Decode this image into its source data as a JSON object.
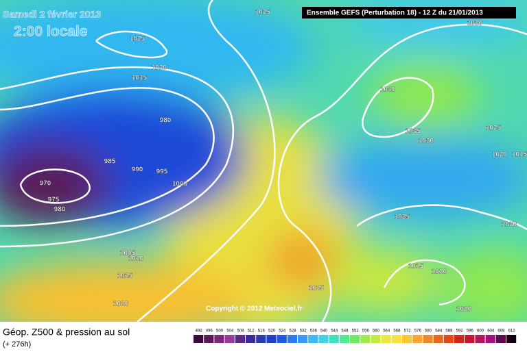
{
  "header": {
    "date": "Samedi 2 février 2013",
    "time": "2:00 locale",
    "model": "Ensemble GEFS (Perturbation 18)  -  12 Z du 21/01/2013",
    "copyright": "Copyright © 2012 Meteociel.fr"
  },
  "footer": {
    "title": "Géop. Z500 & pression au sol",
    "lead": "(+ 276h)"
  },
  "map": {
    "isobar_labels": [
      1025,
      1025,
      1020,
      1015,
      980,
      985,
      990,
      995,
      1000,
      970,
      975,
      980,
      1005,
      1010,
      1015,
      1020,
      1025,
      1040,
      1035,
      1030,
      1025,
      1020,
      1015,
      1025,
      1030,
      1015,
      1020,
      1020,
      1020
    ]
  },
  "legend": {
    "values": [
      492,
      496,
      500,
      504,
      508,
      512,
      516,
      520,
      524,
      528,
      532,
      536,
      540,
      544,
      548,
      552,
      556,
      560,
      564,
      568,
      572,
      576,
      580,
      584,
      588,
      592,
      596,
      600,
      604,
      608,
      612
    ],
    "colors": [
      "#3a0a3a",
      "#5a1a5a",
      "#7a2a7a",
      "#9a3a9a",
      "#5a2a8a",
      "#3a2a9a",
      "#2a3ab0",
      "#2040c8",
      "#1e5ae0",
      "#2a7af0",
      "#3a9af0",
      "#40b8f0",
      "#40d0e8",
      "#40e0c0",
      "#50e890",
      "#70e860",
      "#a0e850",
      "#c8e840",
      "#e8e840",
      "#f8e040",
      "#f8c830",
      "#f8a830",
      "#f08828",
      "#e86820",
      "#e04818",
      "#d02818",
      "#c01830",
      "#b01860",
      "#a01080",
      "#600850",
      "#100010"
    ]
  }
}
